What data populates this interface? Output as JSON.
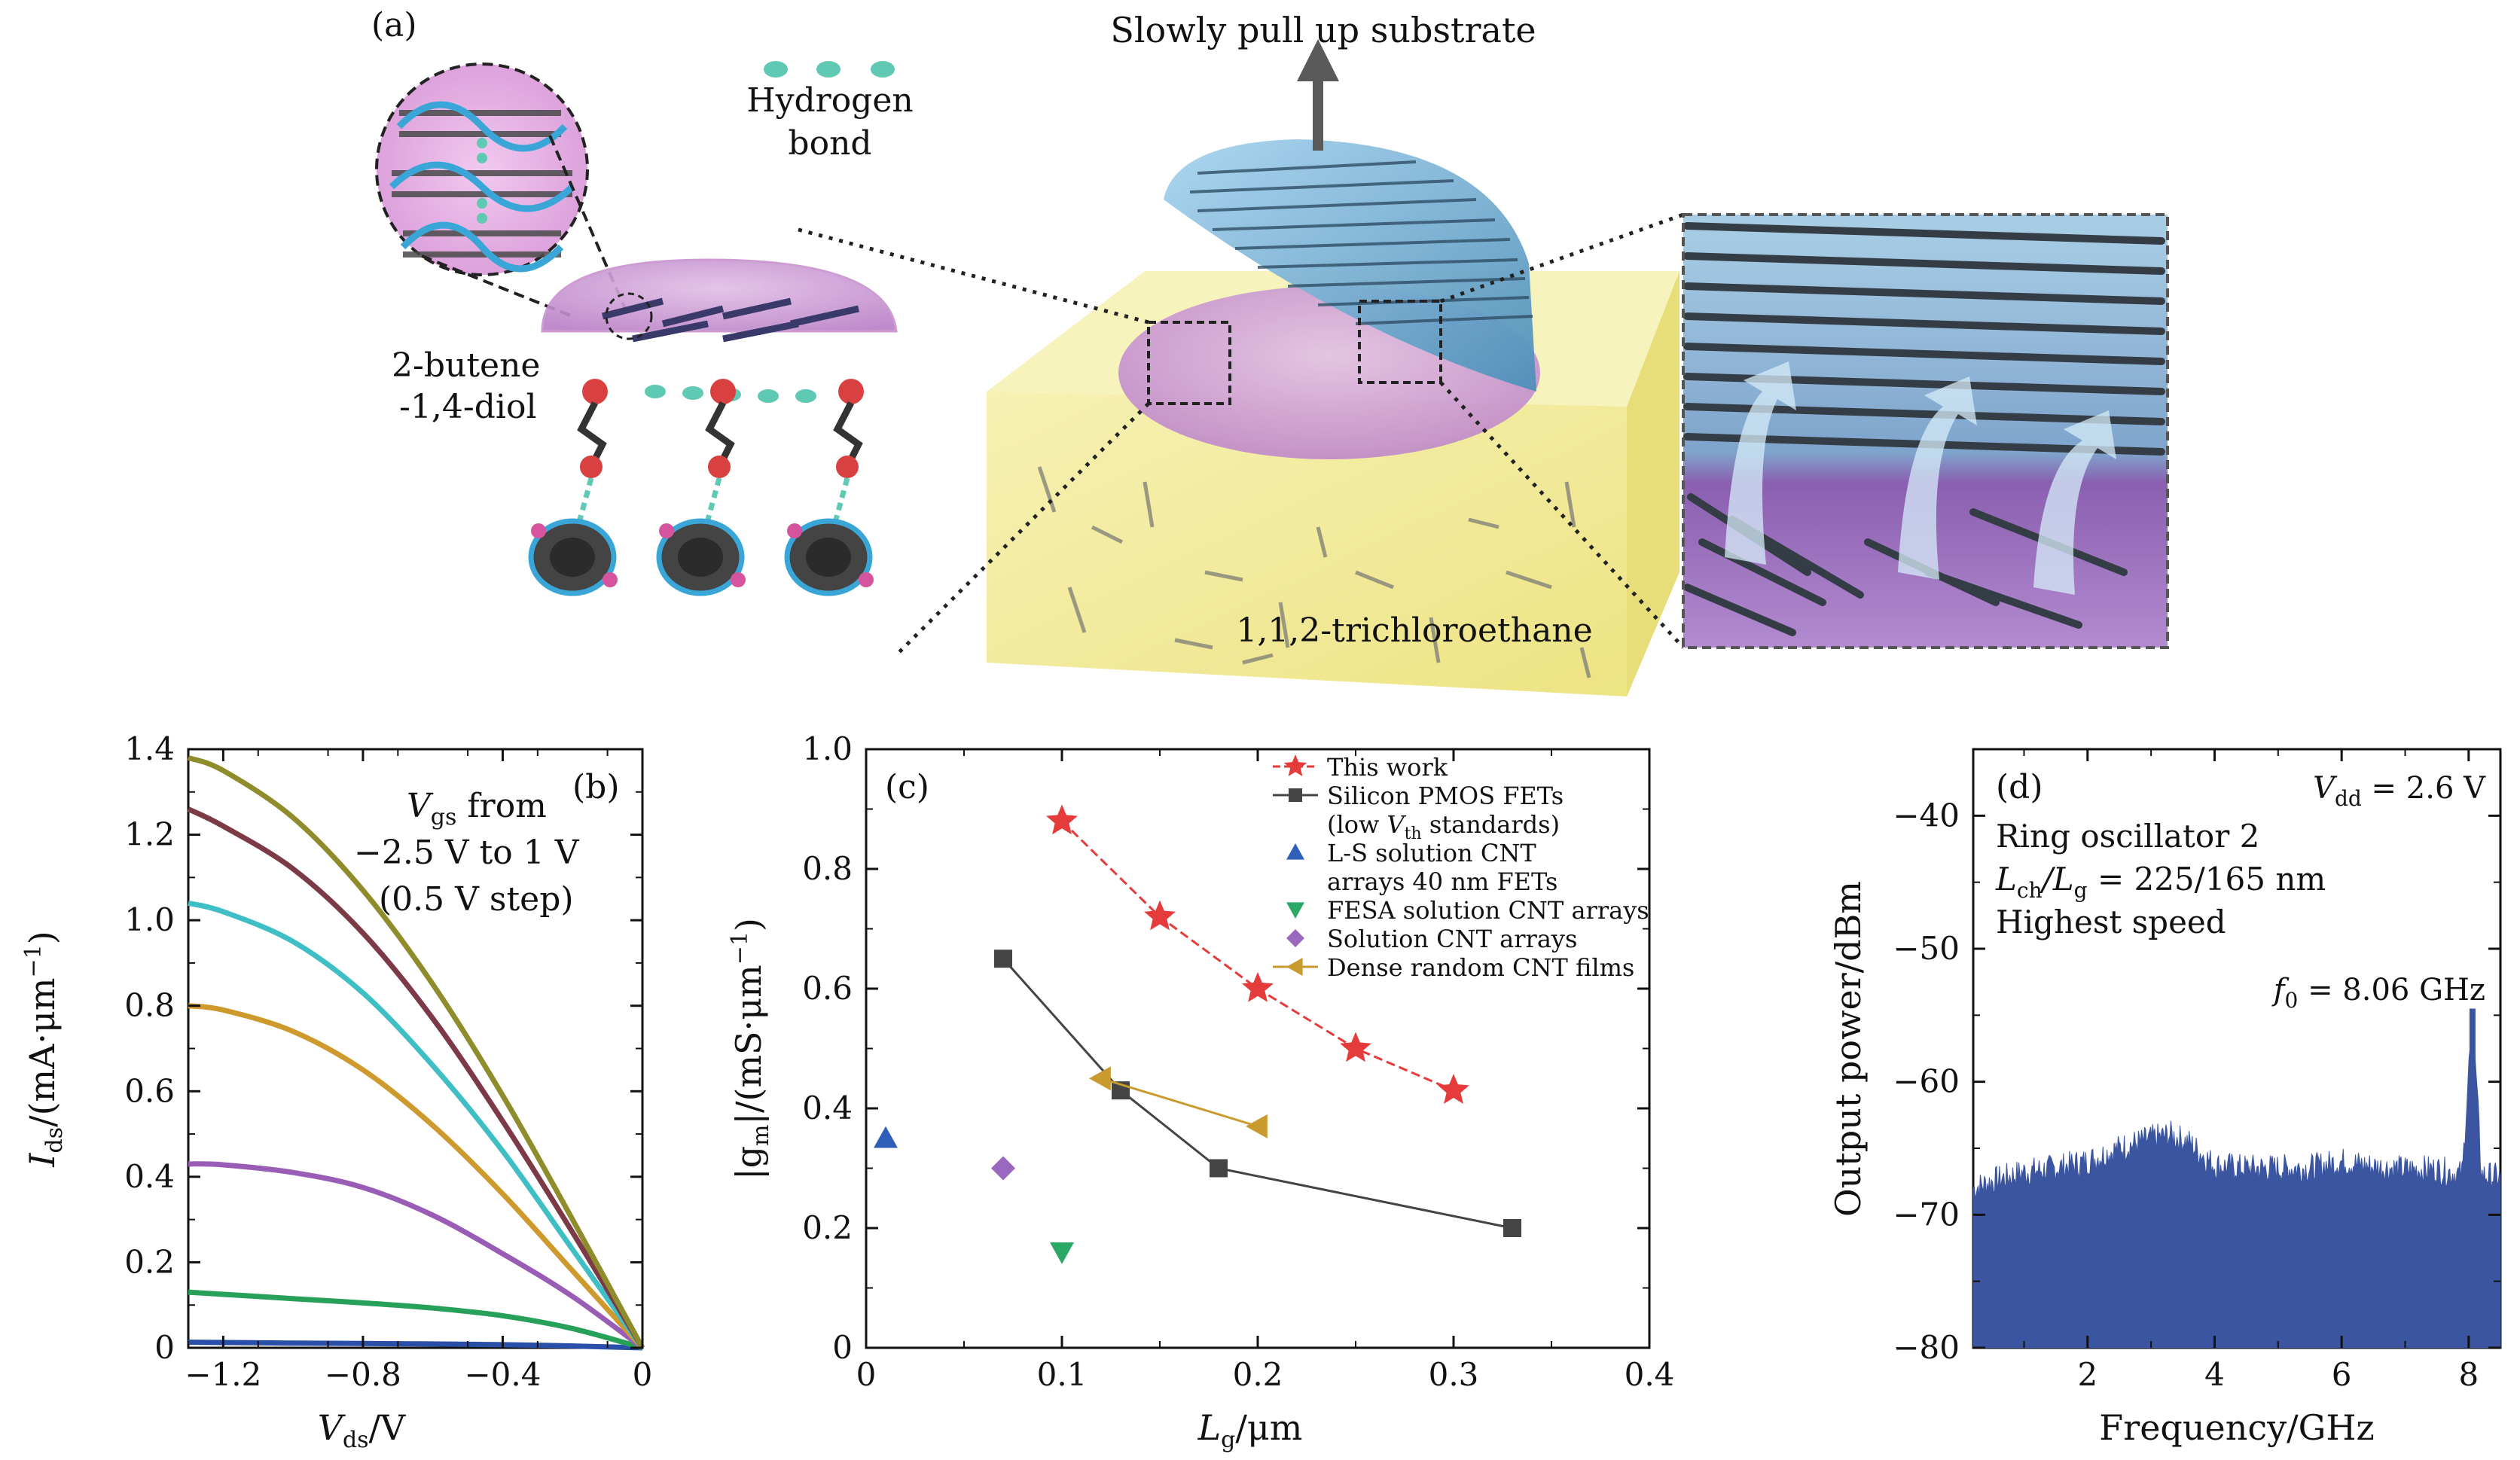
{
  "panel_a": {
    "label": "(a)",
    "pull_label": "Slowly pull up substrate",
    "hbond_label_line1": "Hydrogen",
    "hbond_label_line2": "bond",
    "diol_label_line1": "2-butene",
    "diol_label_line2": "-1,4-diol",
    "solvent_label": "1,1,2-trichloroethane",
    "colors": {
      "substrate": "#f3ec9a",
      "meniscus": "#cfa3d8",
      "film": "#7fb9d9",
      "bond": "#5fc9b4"
    }
  },
  "chart_data": [
    {
      "panel": "(b)",
      "type": "line",
      "xlabel_main": "V",
      "xlabel_sub": "ds",
      "xlabel_tail": "/V",
      "ylabel_main": "I",
      "ylabel_sub": "ds",
      "ylabel_tail": "/(mA·μm",
      "ylabel_exp": "−1",
      "ylabel_close": ")",
      "xlim": [
        -1.3,
        0
      ],
      "ylim": [
        0,
        1.4
      ],
      "xticks": [
        -1.2,
        -0.8,
        -0.4,
        0
      ],
      "xtick_labels": [
        "−1.2",
        "−0.8",
        "−0.4",
        "0"
      ],
      "yticks": [
        0,
        0.2,
        0.4,
        0.6,
        0.8,
        1.0,
        1.2,
        1.4
      ],
      "ytick_labels": [
        "0",
        "0.2",
        "0.4",
        "0.6",
        "0.8",
        "1.0",
        "1.2",
        "1.4"
      ],
      "annotation": {
        "line1_main": "V",
        "line1_sub": "gs",
        "line1_tail": " from",
        "line2": "−2.5 V to 1 V",
        "line3": "(0.5 V step)"
      },
      "series": [
        {
          "color": "#2a4fa8",
          "x": [
            -1.3,
            -1.0,
            -0.6,
            -0.3,
            0
          ],
          "y": [
            0.013,
            0.011,
            0.009,
            0.006,
            0
          ]
        },
        {
          "color": "#27a05a",
          "x": [
            -1.3,
            -1.0,
            -0.8,
            -0.6,
            -0.4,
            -0.2,
            0
          ],
          "y": [
            0.13,
            0.115,
            0.105,
            0.093,
            0.075,
            0.045,
            0
          ]
        },
        {
          "color": "#9a5db5",
          "x": [
            -1.3,
            -1.2,
            -1.0,
            -0.8,
            -0.6,
            -0.4,
            -0.2,
            0
          ],
          "y": [
            0.43,
            0.428,
            0.41,
            0.375,
            0.31,
            0.22,
            0.12,
            0
          ]
        },
        {
          "color": "#cf9a2d",
          "x": [
            -1.3,
            -1.2,
            -1.0,
            -0.8,
            -0.6,
            -0.4,
            -0.2,
            0
          ],
          "y": [
            0.8,
            0.79,
            0.74,
            0.65,
            0.52,
            0.36,
            0.18,
            0
          ]
        },
        {
          "color": "#3fbfc5",
          "x": [
            -1.3,
            -1.2,
            -1.0,
            -0.8,
            -0.6,
            -0.4,
            -0.2,
            0
          ],
          "y": [
            1.04,
            1.02,
            0.95,
            0.83,
            0.66,
            0.46,
            0.23,
            0
          ]
        },
        {
          "color": "#7b3a46",
          "x": [
            -1.3,
            -1.2,
            -1.0,
            -0.8,
            -0.6,
            -0.4,
            -0.2,
            0
          ],
          "y": [
            1.26,
            1.22,
            1.12,
            0.97,
            0.77,
            0.53,
            0.27,
            0
          ]
        },
        {
          "color": "#8f8c2b",
          "x": [
            -1.3,
            -1.2,
            -1.0,
            -0.8,
            -0.6,
            -0.4,
            -0.2,
            0
          ],
          "y": [
            1.38,
            1.35,
            1.24,
            1.07,
            0.85,
            0.59,
            0.3,
            0
          ]
        }
      ]
    },
    {
      "panel": "(c)",
      "type": "scatter",
      "xlabel_main": "L",
      "xlabel_sub": "g",
      "xlabel_tail": "/μm",
      "ylabel_text": "|g",
      "ylabel_sub": "m",
      "ylabel_tail": "|/(mS·μm",
      "ylabel_exp": "−1",
      "ylabel_close": ")",
      "xlim": [
        0,
        0.4
      ],
      "ylim": [
        0,
        1.0
      ],
      "xticks": [
        0,
        0.1,
        0.2,
        0.3,
        0.4
      ],
      "xtick_labels": [
        "0",
        "0.1",
        "0.2",
        "0.3",
        "0.4"
      ],
      "yticks": [
        0,
        0.2,
        0.4,
        0.6,
        0.8,
        1.0
      ],
      "ytick_labels": [
        "0",
        "0.2",
        "0.4",
        "0.6",
        "0.8",
        "1.0"
      ],
      "legend_position": "top-right",
      "series": [
        {
          "name": "This work",
          "marker": "star",
          "color": "#e63b3b",
          "line": true,
          "dashed": true,
          "x": [
            0.1,
            0.15,
            0.2,
            0.25,
            0.3
          ],
          "y": [
            0.88,
            0.72,
            0.6,
            0.5,
            0.43
          ]
        },
        {
          "name": "Silicon PMOS FETs",
          "name_line2_pre": "(low ",
          "name_line2_main": "V",
          "name_line2_sub": "th",
          "name_line2_post": " standards)",
          "marker": "square",
          "color": "#444444",
          "line": true,
          "dashed": false,
          "x": [
            0.07,
            0.13,
            0.18,
            0.33
          ],
          "y": [
            0.65,
            0.43,
            0.3,
            0.2
          ]
        },
        {
          "name": "L-S solution CNT",
          "name_line2": "arrays 40 nm FETs",
          "marker": "triangle-up",
          "color": "#2f5fb8",
          "line": false,
          "x": [
            0.01
          ],
          "y": [
            0.35
          ]
        },
        {
          "name": "FESA solution CNT arrays",
          "marker": "triangle-down",
          "color": "#2aa866",
          "line": false,
          "x": [
            0.1
          ],
          "y": [
            0.16
          ]
        },
        {
          "name": "Solution CNT arrays",
          "marker": "diamond",
          "color": "#9a68bf",
          "line": false,
          "x": [
            0.07
          ],
          "y": [
            0.3
          ]
        },
        {
          "name": "Dense random CNT films",
          "marker": "triangle-left",
          "color": "#c99a2d",
          "line": true,
          "dashed": false,
          "x": [
            0.12,
            0.2
          ],
          "y": [
            0.45,
            0.37
          ]
        }
      ]
    },
    {
      "panel": "(d)",
      "type": "area",
      "xlabel": "Frequency/GHz",
      "ylabel": "Output power/dBm",
      "xlim": [
        0.2,
        8.5
      ],
      "ylim": [
        -80,
        -35
      ],
      "xticks": [
        2,
        4,
        6,
        8
      ],
      "xtick_labels": [
        "2",
        "4",
        "6",
        "8"
      ],
      "yticks": [
        -80,
        -70,
        -60,
        -50,
        -40
      ],
      "ytick_labels": [
        "−80",
        "−70",
        "−60",
        "−50",
        "−40"
      ],
      "fill_color": "#3b55a0",
      "annotation_vdd_main": "V",
      "annotation_vdd_sub": "dd",
      "annotation_vdd_tail": " = 2.6 V",
      "annotation_line1": "Ring oscillator 2",
      "annotation_line2_pre": "L",
      "annotation_line2_sub1": "ch",
      "annotation_line2_mid": "/L",
      "annotation_line2_sub2": "g",
      "annotation_line2_tail": " = 225/165 nm",
      "annotation_line3": "Highest speed",
      "peak_main": "f",
      "peak_sub": "0",
      "peak_tail": " = 8.06 GHz",
      "peak": {
        "x": 8.06,
        "y": -54.5
      },
      "x": [
        0.2,
        0.5,
        1.0,
        1.5,
        2.0,
        2.5,
        3.0,
        3.3,
        3.6,
        4.0,
        4.5,
        5.0,
        5.5,
        6.0,
        6.5,
        7.0,
        7.5,
        7.9,
        8.06,
        8.2,
        8.5
      ],
      "y": [
        -68,
        -67.5,
        -66.8,
        -66.5,
        -66,
        -65,
        -64.3,
        -64,
        -64.6,
        -66.3,
        -66.5,
        -66.5,
        -66.5,
        -66,
        -66.4,
        -66.6,
        -66.6,
        -67,
        -54.5,
        -67,
        -67.2
      ]
    }
  ]
}
